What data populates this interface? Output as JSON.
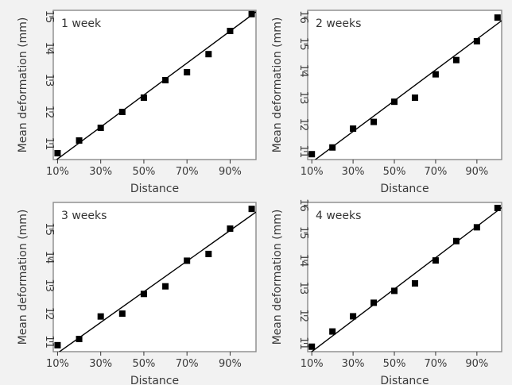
{
  "chart_data": [
    {
      "type": "scatter",
      "title": "1 week",
      "xlabel": "Distance",
      "ylabel": "Mean deformation (mm)",
      "x": [
        10,
        20,
        30,
        40,
        50,
        60,
        70,
        80,
        90,
        100
      ],
      "y": [
        10.7,
        11.1,
        11.5,
        12.0,
        12.45,
        13.0,
        13.25,
        13.82,
        14.55,
        15.08
      ],
      "fit": [
        10.52,
        15.05
      ],
      "xticks": [
        10,
        30,
        50,
        70,
        90
      ],
      "xticklabels": [
        "10%",
        "30%",
        "50%",
        "70%",
        "90%"
      ],
      "yticks": [
        11,
        12,
        13,
        14,
        15
      ],
      "xlim": [
        8,
        102
      ],
      "ylim": [
        10.5,
        15.2
      ],
      "grid": false
    },
    {
      "type": "scatter",
      "title": "2 weeks",
      "xlabel": "Distance",
      "ylabel": "Mean deformation (mm)",
      "x": [
        10,
        20,
        30,
        40,
        50,
        60,
        70,
        80,
        90,
        100
      ],
      "y": [
        10.9,
        11.15,
        11.85,
        12.1,
        12.85,
        13.0,
        13.87,
        14.4,
        15.1,
        15.98
      ],
      "fit": [
        10.6,
        15.75
      ],
      "xticks": [
        10,
        30,
        50,
        70,
        90
      ],
      "xticklabels": [
        "10%",
        "30%",
        "50%",
        "70%",
        "90%"
      ],
      "yticks": [
        11,
        12,
        13,
        14,
        15,
        16
      ],
      "xlim": [
        8,
        102
      ],
      "ylim": [
        10.7,
        16.25
      ],
      "grid": false
    },
    {
      "type": "scatter",
      "title": "3 weeks",
      "xlabel": "Distance",
      "ylabel": "Mean deformation (mm)",
      "x": [
        10,
        20,
        30,
        40,
        50,
        60,
        70,
        80,
        90,
        100
      ],
      "y": [
        10.88,
        11.1,
        11.9,
        12.0,
        12.7,
        12.97,
        13.88,
        14.12,
        15.02,
        15.72
      ],
      "fit": [
        10.6,
        15.5
      ],
      "xticks": [
        10,
        30,
        50,
        70,
        90
      ],
      "xticklabels": [
        "10%",
        "30%",
        "50%",
        "70%",
        "90%"
      ],
      "yticks": [
        11,
        12,
        13,
        14,
        15
      ],
      "xlim": [
        8,
        102
      ],
      "ylim": [
        10.65,
        15.95
      ],
      "grid": false
    },
    {
      "type": "scatter",
      "title": "4 weeks",
      "xlabel": "Distance",
      "ylabel": "Mean deformation (mm)",
      "x": [
        10,
        20,
        30,
        40,
        50,
        60,
        70,
        80,
        90,
        100
      ],
      "y": [
        10.88,
        11.43,
        11.98,
        12.47,
        12.9,
        13.17,
        14.0,
        14.7,
        15.2,
        15.9
      ],
      "fit": [
        10.7,
        15.8
      ],
      "xticks": [
        10,
        30,
        50,
        70,
        90
      ],
      "xticklabels": [
        "10%",
        "30%",
        "50%",
        "70%",
        "90%"
      ],
      "yticks": [
        11,
        12,
        13,
        14,
        15,
        16
      ],
      "xlim": [
        8,
        102
      ],
      "ylim": [
        10.7,
        16.1
      ],
      "grid": false
    }
  ]
}
